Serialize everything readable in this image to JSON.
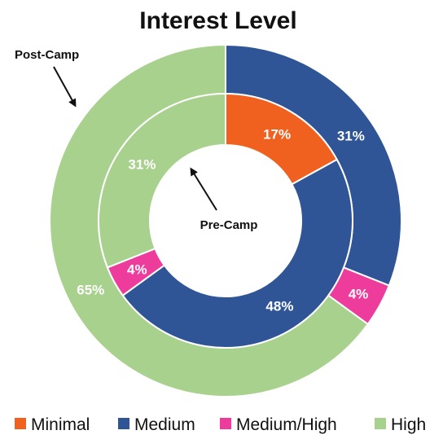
{
  "chart_data": {
    "type": "donut",
    "title": "Interest Level",
    "categories": [
      "Minimal",
      "Medium",
      "Medium/High",
      "High"
    ],
    "colors": {
      "Minimal": "#F0601E",
      "Medium": "#2F5597",
      "Medium/High": "#EE3C9C",
      "High": "#A9D18E"
    },
    "series": [
      {
        "name": "Post-Camp",
        "ring": "outer",
        "values": [
          0,
          31,
          4,
          65
        ],
        "labels": [
          "",
          "31%",
          "4%",
          "65%"
        ]
      },
      {
        "name": "Pre-Camp",
        "ring": "inner",
        "values": [
          17,
          48,
          4,
          31
        ],
        "labels": [
          "17%",
          "48%",
          "4%",
          "31%"
        ]
      }
    ],
    "annotations": [
      "Post-Camp",
      "Pre-Camp"
    ],
    "legend": {
      "position": "bottom",
      "items": [
        "Minimal",
        "Medium",
        "Medium/High",
        "High"
      ]
    }
  }
}
